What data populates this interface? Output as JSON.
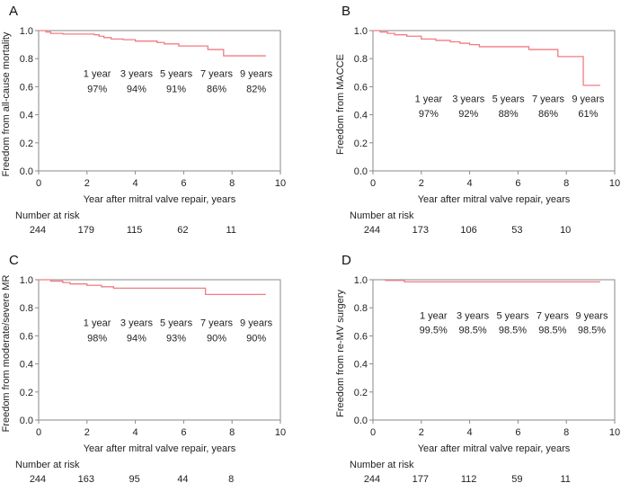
{
  "chart_data": [
    {
      "type": "line",
      "panel": "A",
      "ylabel": "Freedom from all-cause mortality",
      "xlabel": "Year after mitral valve repair, years",
      "xlim": [
        0,
        10
      ],
      "ylim": [
        0,
        1
      ],
      "xticks": [
        "0",
        "2",
        "4",
        "6",
        "8",
        "10"
      ],
      "yticks": [
        "0.0",
        "0.2",
        "0.4",
        "0.6",
        "0.8",
        "1.0"
      ],
      "curve": {
        "x": [
          0,
          0.3,
          0.5,
          1.0,
          2.3,
          2.5,
          2.7,
          3.0,
          3.5,
          4.0,
          4.9,
          5.2,
          5.8,
          7.0,
          7.65,
          9.4
        ],
        "y": [
          1.0,
          0.99,
          0.98,
          0.975,
          0.97,
          0.96,
          0.95,
          0.94,
          0.935,
          0.925,
          0.915,
          0.905,
          0.89,
          0.865,
          0.82,
          0.82
        ]
      },
      "annotation_labels": [
        "1 year",
        "3 years",
        "5 years",
        "7 years",
        "9 years"
      ],
      "annotation_values": [
        "97%",
        "94%",
        "91%",
        "86%",
        "82%"
      ],
      "risk_title": "Number at risk",
      "risk_values": [
        "244",
        "179",
        "115",
        "62",
        "11"
      ]
    },
    {
      "type": "line",
      "panel": "B",
      "ylabel": "Freedom from MACCE",
      "xlabel": "Year after mitral valve repair, years",
      "xlim": [
        0,
        10
      ],
      "ylim": [
        0,
        1
      ],
      "xticks": [
        "0",
        "2",
        "4",
        "6",
        "8",
        "10"
      ],
      "yticks": [
        "0.0",
        "0.2",
        "0.4",
        "0.6",
        "0.8",
        "1.0"
      ],
      "curve": {
        "x": [
          0,
          0.3,
          0.6,
          0.9,
          1.4,
          2.0,
          2.6,
          3.2,
          3.6,
          4.0,
          4.4,
          6.45,
          7.65,
          8.7,
          9.4
        ],
        "y": [
          1.0,
          0.99,
          0.98,
          0.97,
          0.96,
          0.94,
          0.93,
          0.92,
          0.91,
          0.9,
          0.885,
          0.865,
          0.815,
          0.61,
          0.61
        ]
      },
      "annotation_labels": [
        "1 year",
        "3 years",
        "5 years",
        "7 years",
        "9 years"
      ],
      "annotation_values": [
        "97%",
        "92%",
        "88%",
        "86%",
        "61%"
      ],
      "risk_title": "Number at risk",
      "risk_values": [
        "244",
        "173",
        "106",
        "53",
        "10"
      ]
    },
    {
      "type": "line",
      "panel": "C",
      "ylabel": "Freedom from moderate/severe MR",
      "xlabel": "Year after mitral valve repair, years",
      "xlim": [
        0,
        10
      ],
      "ylim": [
        0,
        1
      ],
      "xticks": [
        "0",
        "2",
        "4",
        "6",
        "8",
        "10"
      ],
      "yticks": [
        "0.0",
        "0.2",
        "0.4",
        "0.6",
        "0.8",
        "1.0"
      ],
      "curve": {
        "x": [
          0,
          0.5,
          1.0,
          1.3,
          2.0,
          2.6,
          3.1,
          6.9,
          9.4
        ],
        "y": [
          1.0,
          0.99,
          0.98,
          0.97,
          0.96,
          0.95,
          0.94,
          0.895,
          0.895
        ]
      },
      "annotation_labels": [
        "1 year",
        "3 years",
        "5 years",
        "7 years",
        "9 years"
      ],
      "annotation_values": [
        "98%",
        "94%",
        "93%",
        "90%",
        "90%"
      ],
      "risk_title": "Number at risk",
      "risk_values": [
        "244",
        "163",
        "95",
        "44",
        "8"
      ]
    },
    {
      "type": "line",
      "panel": "D",
      "ylabel": "Freedom from re-MV surgery",
      "xlabel": "Year after mitral valve repair, years",
      "xlim": [
        0,
        10
      ],
      "ylim": [
        0,
        1
      ],
      "xticks": [
        "0",
        "2",
        "4",
        "6",
        "8",
        "10"
      ],
      "yticks": [
        "0.0",
        "0.2",
        "0.4",
        "0.6",
        "0.8",
        "1.0"
      ],
      "curve": {
        "x": [
          0.5,
          1.3,
          9.4
        ],
        "y": [
          0.995,
          0.985,
          0.985
        ]
      },
      "annotation_labels": [
        "1 year",
        "3 years",
        "5 years",
        "7 years",
        "9 years"
      ],
      "annotation_values": [
        "99.5%",
        "98.5%",
        "98.5%",
        "98.5%",
        "98.5%"
      ],
      "risk_title": "Number at risk",
      "risk_values": [
        "244",
        "177",
        "112",
        "59",
        "11"
      ]
    }
  ],
  "colors": {
    "curve": "#f07c84",
    "axis": "#8a8a8a",
    "text": "#222222"
  }
}
